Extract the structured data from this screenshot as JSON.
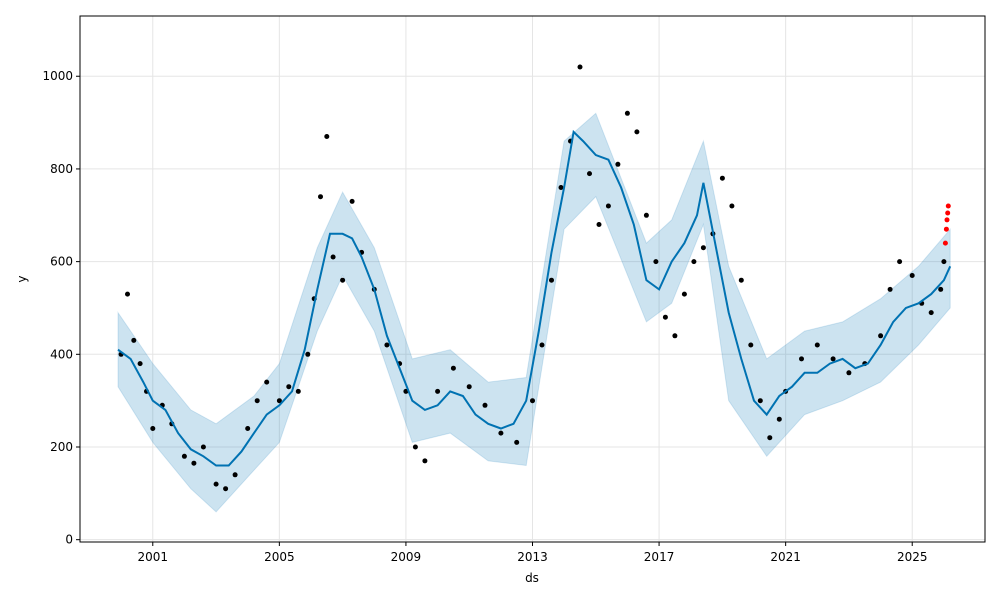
{
  "chart_data": {
    "type": "scatter",
    "title": "",
    "xlabel": "ds",
    "ylabel": "y",
    "xlim": [
      1998.7,
      2027.3
    ],
    "ylim": [
      -5,
      1130
    ],
    "x_ticks": [
      "2001",
      "2005",
      "2009",
      "2013",
      "2017",
      "2021",
      "2025"
    ],
    "x_tick_values": [
      2001,
      2005,
      2009,
      2013,
      2017,
      2021,
      2025
    ],
    "y_ticks": [
      "0",
      "200",
      "400",
      "600",
      "800",
      "1000"
    ],
    "y_tick_values": [
      0,
      200,
      400,
      600,
      800,
      1000
    ],
    "grid": true,
    "colors": {
      "observed": "#000000",
      "recent_observed": "#ff0000",
      "forecast": "#0072b2",
      "uncertainty": "#0072b2"
    },
    "series": [
      {
        "role": "observed",
        "style": "dots",
        "x": [
          2000.0,
          2000.2,
          2000.4,
          2000.6,
          2000.8,
          2001.0,
          2001.3,
          2001.6,
          2002.0,
          2002.3,
          2002.6,
          2003.0,
          2003.3,
          2003.6,
          2004.0,
          2004.3,
          2004.6,
          2005.0,
          2005.3,
          2005.6,
          2005.9,
          2006.1,
          2006.3,
          2006.5,
          2006.7,
          2007.0,
          2007.3,
          2007.6,
          2008.0,
          2008.4,
          2008.8,
          2009.0,
          2009.3,
          2009.6,
          2010.0,
          2010.5,
          2011.0,
          2011.5,
          2012.0,
          2012.5,
          2013.0,
          2013.3,
          2013.6,
          2013.9,
          2014.2,
          2014.5,
          2014.8,
          2015.1,
          2015.4,
          2015.7,
          2016.0,
          2016.3,
          2016.6,
          2016.9,
          2017.2,
          2017.5,
          2017.8,
          2018.1,
          2018.4,
          2018.7,
          2019.0,
          2019.3,
          2019.6,
          2019.9,
          2020.2,
          2020.5,
          2020.8,
          2021.0,
          2021.5,
          2022.0,
          2022.5,
          2023.0,
          2023.5,
          2024.0,
          2024.3,
          2024.6,
          2025.0,
          2025.3,
          2025.6,
          2025.9,
          2026.0
        ],
        "y": [
          400,
          530,
          430,
          380,
          320,
          240,
          290,
          250,
          180,
          165,
          200,
          120,
          110,
          140,
          240,
          300,
          340,
          300,
          330,
          320,
          400,
          520,
          740,
          870,
          610,
          560,
          730,
          620,
          540,
          420,
          380,
          320,
          200,
          170,
          320,
          370,
          330,
          290,
          230,
          210,
          300,
          420,
          560,
          760,
          860,
          1020,
          790,
          680,
          720,
          810,
          920,
          880,
          700,
          600,
          480,
          440,
          530,
          600,
          630,
          660,
          780,
          720,
          560,
          420,
          300,
          220,
          260,
          320,
          390,
          420,
          390,
          360,
          380,
          440,
          540,
          600,
          570,
          510,
          490,
          540,
          600
        ]
      },
      {
        "role": "recent_observed",
        "style": "dots",
        "x": [
          2026.05,
          2026.08,
          2026.1,
          2026.12,
          2026.14
        ],
        "y": [
          640,
          670,
          690,
          705,
          720
        ]
      },
      {
        "role": "forecast",
        "style": "line",
        "x": [
          1999.9,
          2000.3,
          2000.7,
          2001.0,
          2001.4,
          2001.8,
          2002.2,
          2002.6,
          2003.0,
          2003.4,
          2003.8,
          2004.2,
          2004.6,
          2005.0,
          2005.4,
          2005.8,
          2006.2,
          2006.6,
          2007.0,
          2007.3,
          2007.6,
          2008.0,
          2008.4,
          2008.8,
          2009.2,
          2009.6,
          2010.0,
          2010.4,
          2010.8,
          2011.2,
          2011.6,
          2012.0,
          2012.4,
          2012.8,
          2013.2,
          2013.6,
          2014.0,
          2014.3,
          2014.6,
          2015.0,
          2015.4,
          2015.8,
          2016.2,
          2016.6,
          2017.0,
          2017.4,
          2017.8,
          2018.2,
          2018.4,
          2018.8,
          2019.2,
          2019.6,
          2020.0,
          2020.4,
          2020.8,
          2021.2,
          2021.6,
          2022.0,
          2022.4,
          2022.8,
          2023.2,
          2023.6,
          2024.0,
          2024.4,
          2024.8,
          2025.2,
          2025.6,
          2026.0,
          2026.2
        ],
        "y": [
          410,
          390,
          340,
          300,
          280,
          230,
          195,
          180,
          160,
          160,
          190,
          230,
          270,
          290,
          320,
          410,
          540,
          660,
          660,
          650,
          610,
          540,
          440,
          370,
          300,
          280,
          290,
          320,
          310,
          270,
          250,
          240,
          250,
          300,
          450,
          620,
          760,
          880,
          860,
          830,
          820,
          760,
          680,
          560,
          540,
          600,
          640,
          700,
          770,
          630,
          490,
          390,
          300,
          270,
          310,
          330,
          360,
          360,
          380,
          390,
          370,
          380,
          420,
          470,
          500,
          510,
          530,
          560,
          590
        ]
      },
      {
        "role": "uncertainty_band",
        "style": "band",
        "x": [
          1999.9,
          2001.0,
          2002.2,
          2003.0,
          2004.2,
          2005.0,
          2006.2,
          2007.0,
          2008.0,
          2009.2,
          2010.4,
          2011.6,
          2012.8,
          2014.0,
          2015.0,
          2016.6,
          2017.4,
          2018.4,
          2019.2,
          2020.4,
          2021.6,
          2022.8,
          2024.0,
          2025.2,
          2026.2
        ],
        "upper": [
          490,
          380,
          280,
          250,
          310,
          380,
          630,
          750,
          630,
          390,
          410,
          340,
          350,
          860,
          920,
          640,
          690,
          860,
          590,
          390,
          450,
          470,
          520,
          590,
          670
        ],
        "lower": [
          330,
          210,
          110,
          60,
          150,
          210,
          450,
          570,
          450,
          210,
          230,
          170,
          160,
          670,
          740,
          470,
          510,
          680,
          300,
          180,
          270,
          300,
          340,
          420,
          500
        ]
      }
    ]
  }
}
